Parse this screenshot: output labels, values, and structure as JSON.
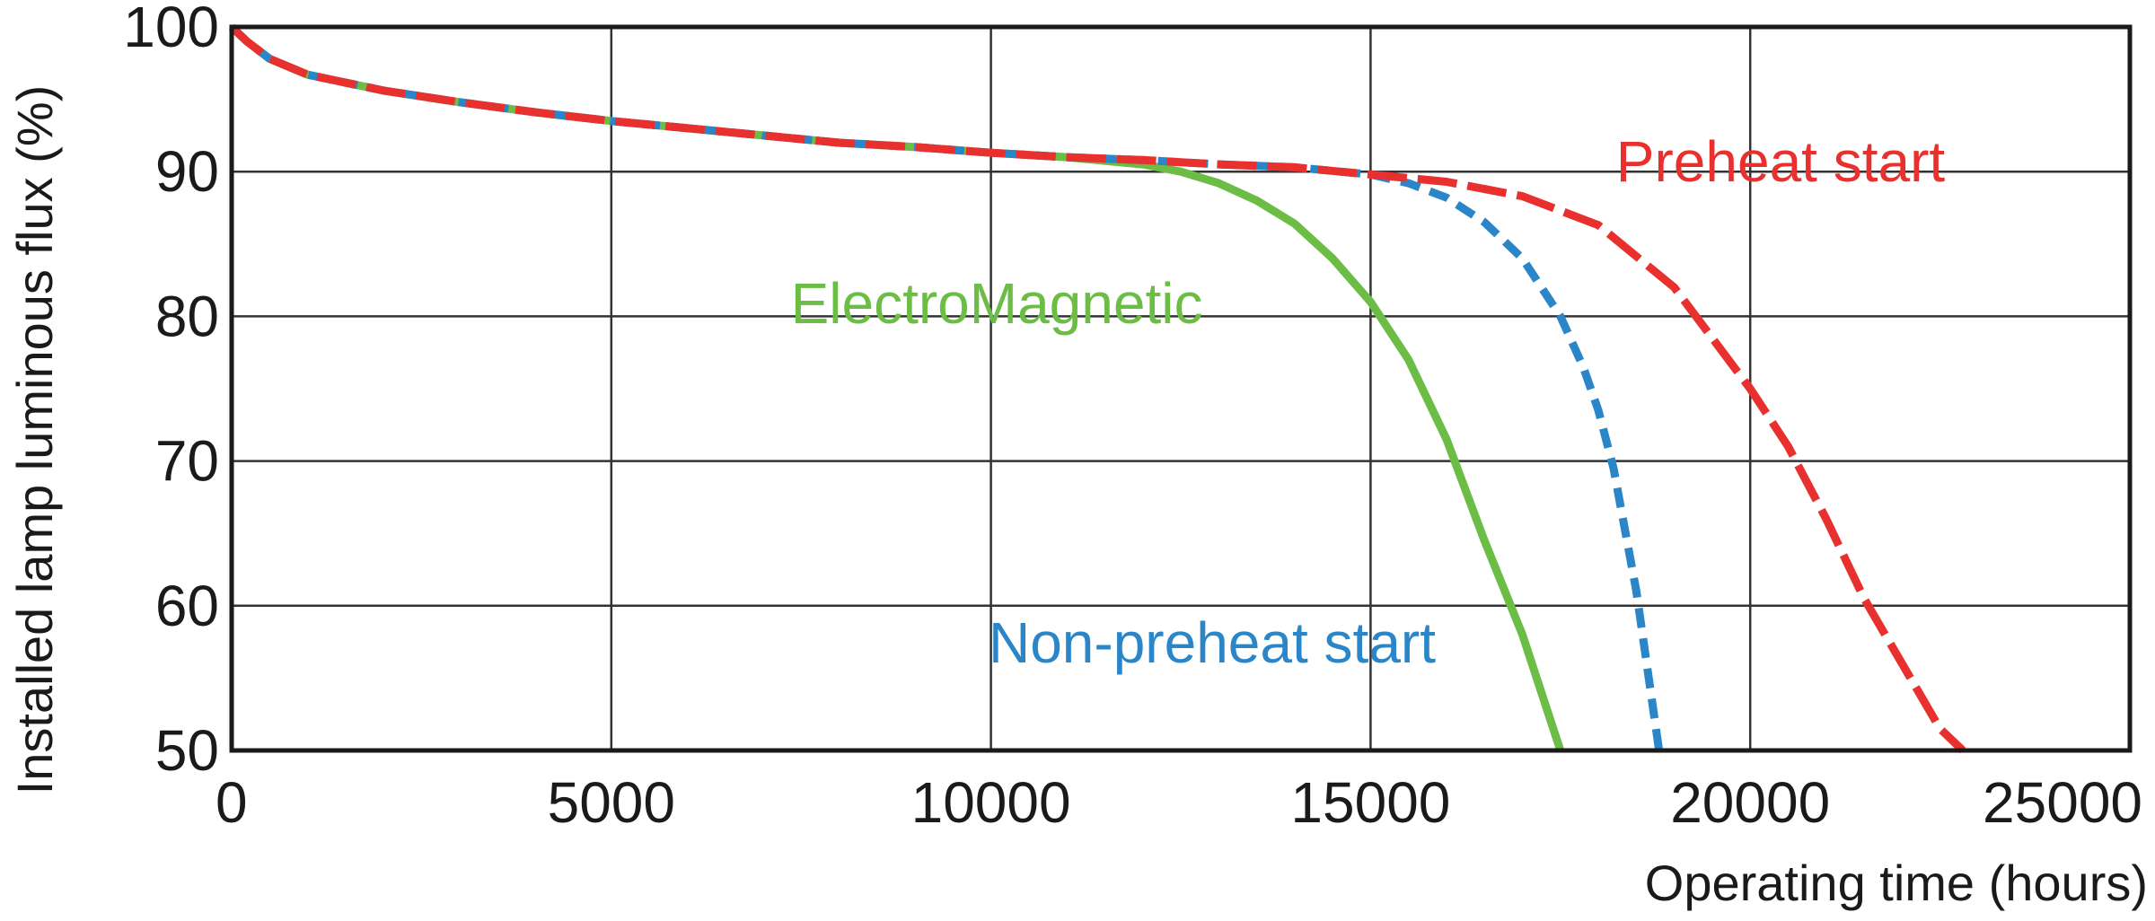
{
  "chart_data": {
    "type": "line",
    "xlabel": "Operating time (hours)",
    "ylabel": "Installed lamp luminous flux  (%)",
    "xlim": [
      0,
      25000
    ],
    "ylim": [
      50,
      100
    ],
    "xticks": [
      "0",
      "5000",
      "10000",
      "15000",
      "20000",
      "25000"
    ],
    "yticks": [
      "50",
      "60",
      "70",
      "80",
      "90",
      "100"
    ],
    "grid": true,
    "colors": {
      "preheat": "#e8312f",
      "nonpreheat": "#2a86c8",
      "electromagnetic": "#6bbd45",
      "grid": "#333333"
    },
    "series": [
      {
        "name": "ElectroMagnetic",
        "color": "#6bbd45",
        "style": "solid",
        "x": [
          0,
          200,
          500,
          1000,
          2000,
          3000,
          4000,
          5000,
          6000,
          7000,
          8000,
          9000,
          10000,
          11000,
          12000,
          12500,
          13000,
          13500,
          14000,
          14500,
          15000,
          15500,
          16000,
          16500,
          17000,
          17500
        ],
        "y": [
          100,
          99,
          97.8,
          96.7,
          95.6,
          94.8,
          94.1,
          93.5,
          93,
          92.5,
          92,
          91.7,
          91.3,
          91,
          90.5,
          90,
          89.2,
          88,
          86.4,
          84,
          81,
          77,
          71.5,
          64.5,
          58,
          50
        ]
      },
      {
        "name": "Non-preheat start",
        "color": "#2a86c8",
        "style": "dashed",
        "x": [
          0,
          200,
          500,
          1000,
          2000,
          3000,
          4000,
          5000,
          6000,
          7000,
          8000,
          9000,
          10000,
          11000,
          12000,
          13000,
          14000,
          15000,
          15500,
          16000,
          16500,
          17000,
          17500,
          17800,
          18000,
          18200,
          18500,
          18800
        ],
        "y": [
          100,
          99,
          97.8,
          96.7,
          95.6,
          94.8,
          94.1,
          93.5,
          93,
          92.5,
          92,
          91.7,
          91.3,
          91,
          90.8,
          90.5,
          90.3,
          89.8,
          89.2,
          88.2,
          86.5,
          84,
          80,
          76.5,
          73.5,
          69.5,
          61,
          50
        ]
      },
      {
        "name": "Preheat start",
        "color": "#e8312f",
        "style": "long-dashed",
        "x": [
          0,
          200,
          500,
          1000,
          2000,
          3000,
          4000,
          5000,
          6000,
          7000,
          8000,
          9000,
          10000,
          11000,
          12000,
          13000,
          14000,
          15000,
          16000,
          17000,
          18000,
          19000,
          20000,
          20500,
          21000,
          21500,
          22000,
          22500,
          22800
        ],
        "y": [
          100,
          99,
          97.8,
          96.7,
          95.6,
          94.8,
          94.1,
          93.5,
          93,
          92.5,
          92,
          91.7,
          91.3,
          91,
          90.8,
          90.5,
          90.3,
          89.8,
          89.3,
          88.3,
          86.3,
          82,
          75,
          71,
          66,
          60.5,
          56,
          51.5,
          50
        ]
      }
    ]
  }
}
